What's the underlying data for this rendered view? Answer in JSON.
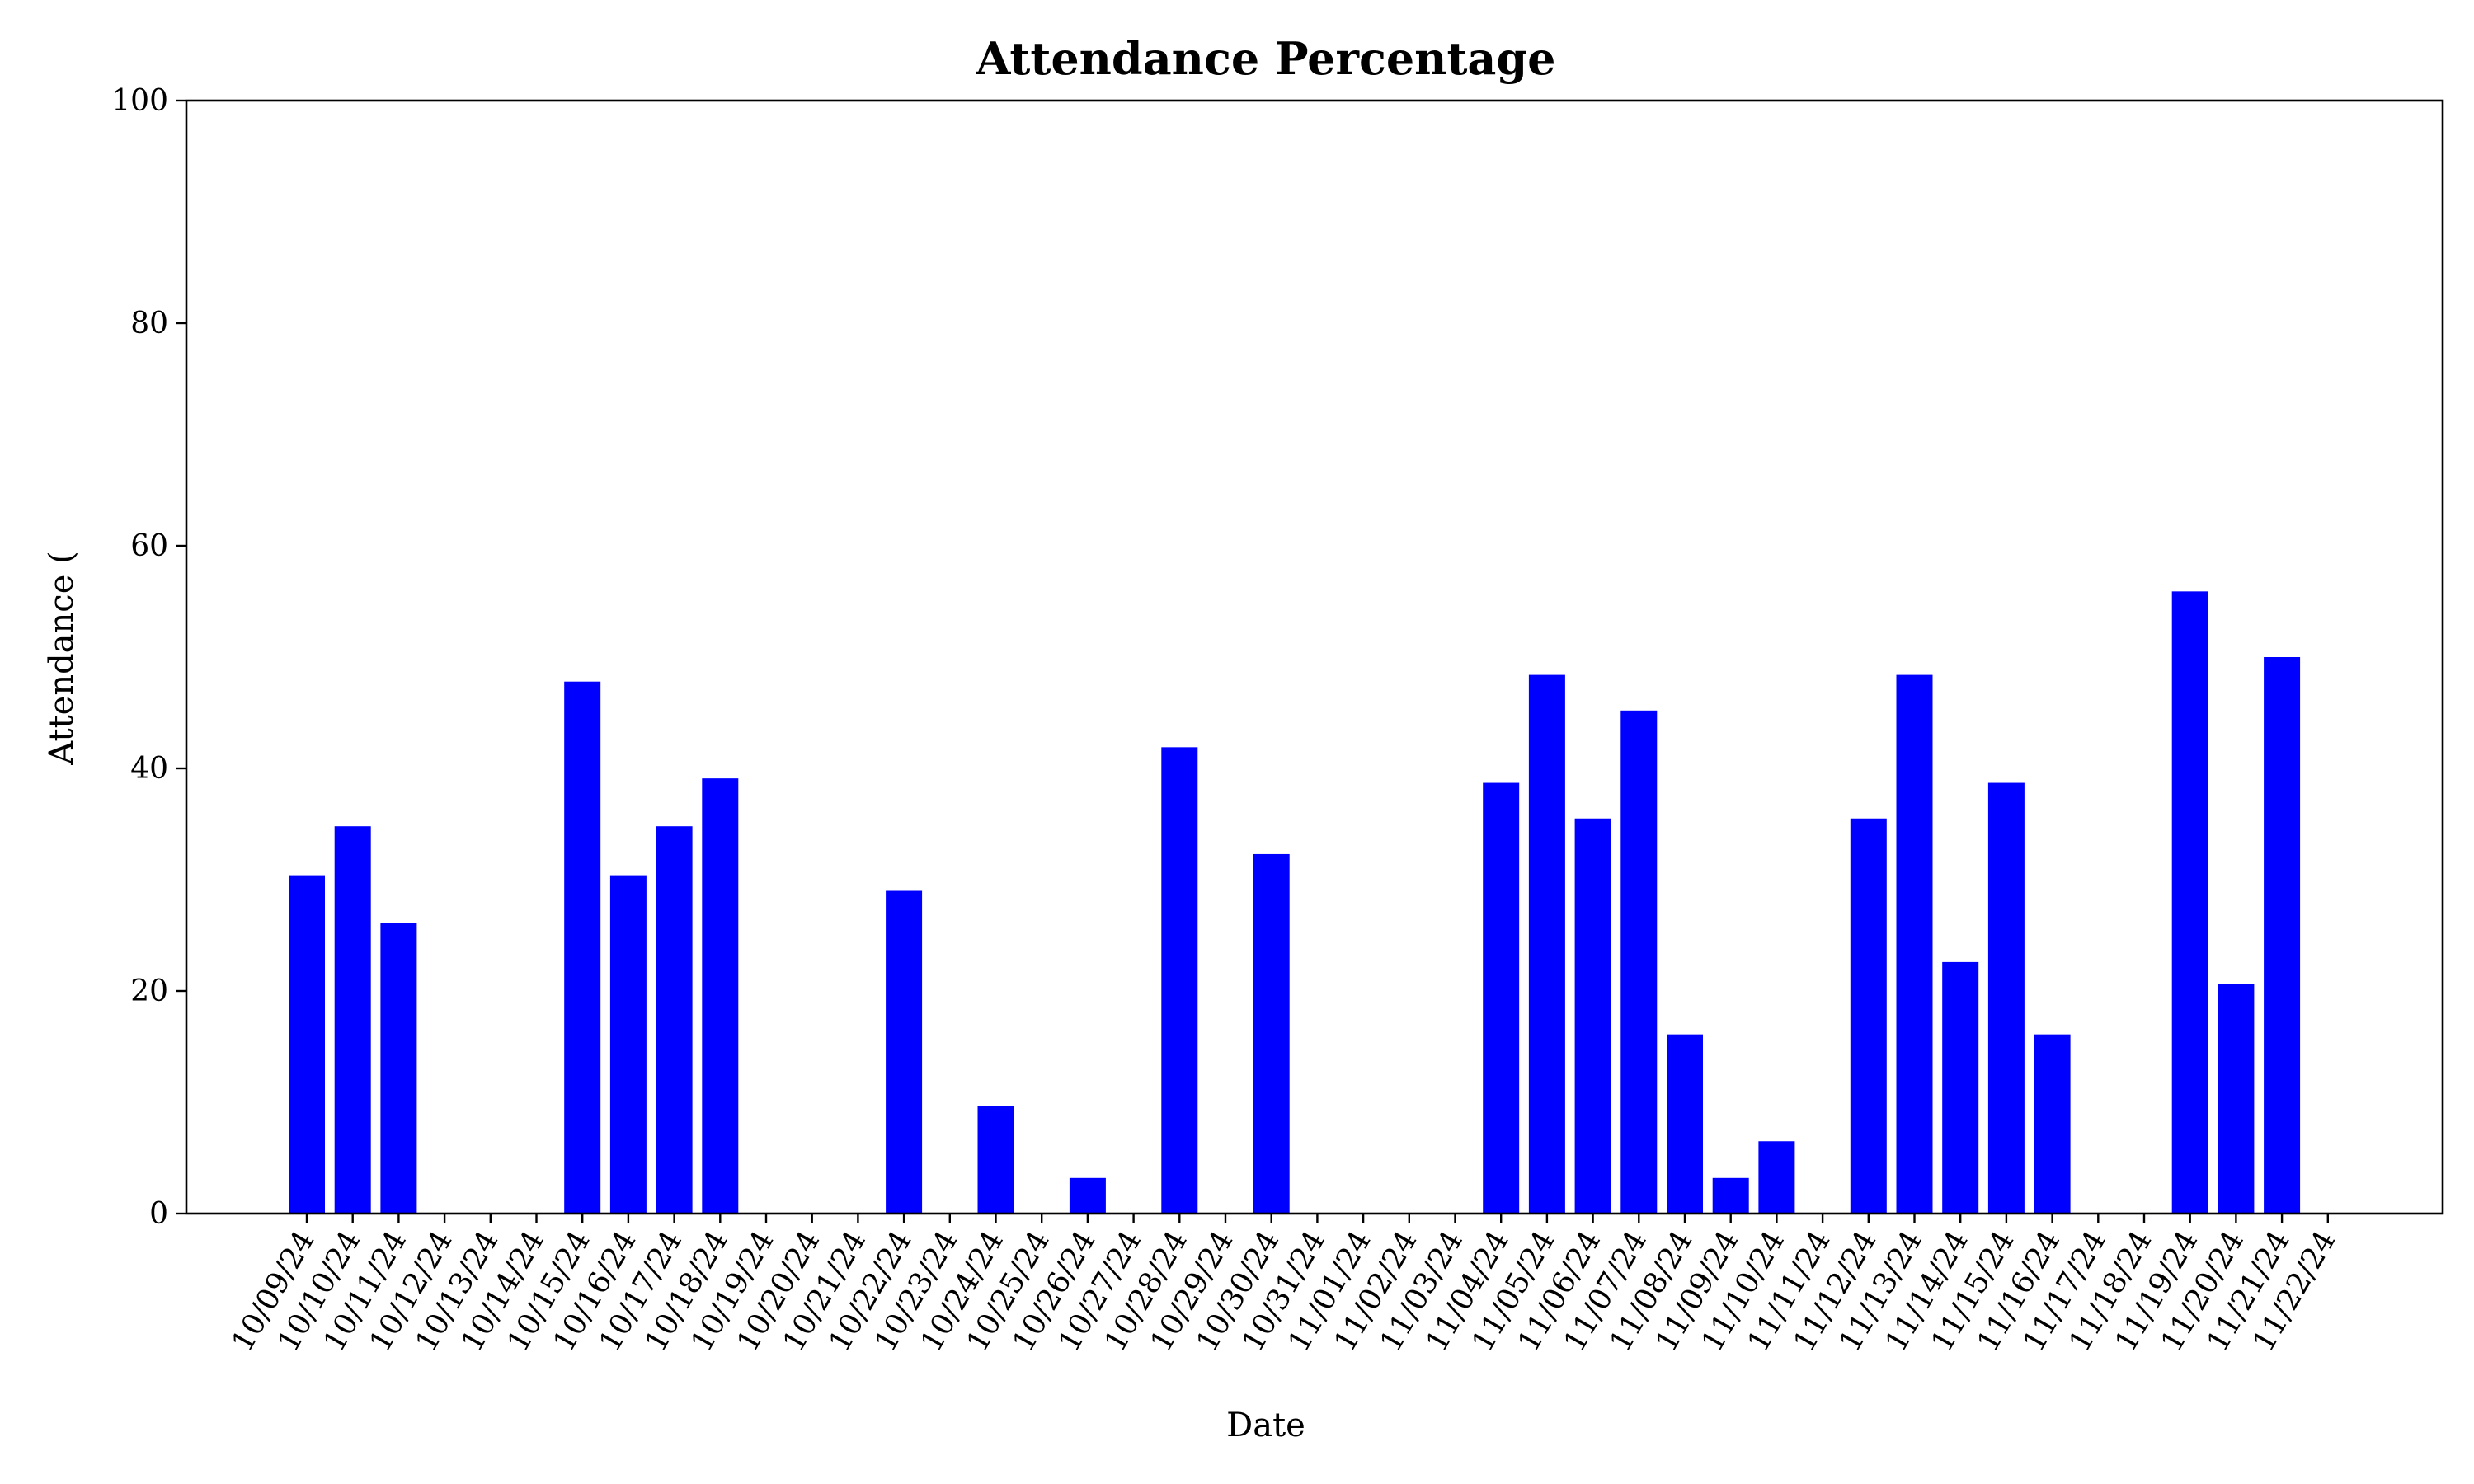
{
  "chart_data": {
    "type": "bar",
    "title": "Attendance Percentage",
    "xlabel": "Date",
    "ylabel": "Attendance (",
    "ylim": [
      0,
      100
    ],
    "yticks": [
      0,
      20,
      40,
      60,
      80,
      100
    ],
    "grid": false,
    "bar_color": "#0000ff",
    "categories": [
      "10/09/24",
      "10/10/24",
      "10/11/24",
      "10/12/24",
      "10/13/24",
      "10/14/24",
      "10/15/24",
      "10/16/24",
      "10/17/24",
      "10/18/24",
      "10/19/24",
      "10/20/24",
      "10/21/24",
      "10/22/24",
      "10/23/24",
      "10/24/24",
      "10/25/24",
      "10/26/24",
      "10/27/24",
      "10/28/24",
      "10/29/24",
      "10/30/24",
      "10/31/24",
      "11/01/24",
      "11/02/24",
      "11/03/24",
      "11/04/24",
      "11/05/24",
      "11/06/24",
      "11/07/24",
      "11/08/24",
      "11/09/24",
      "11/10/24",
      "11/11/24",
      "11/12/24",
      "11/13/24",
      "11/14/24",
      "11/15/24",
      "11/16/24",
      "11/17/24",
      "11/18/24",
      "11/19/24",
      "11/20/24",
      "11/21/24",
      "11/22/24"
    ],
    "values": [
      30.4,
      34.8,
      26.1,
      0,
      0,
      0,
      47.8,
      30.4,
      34.8,
      39.1,
      0,
      0,
      0,
      29.0,
      0,
      9.7,
      0,
      3.2,
      0,
      41.9,
      0,
      32.3,
      0,
      0,
      0,
      0,
      38.7,
      48.4,
      35.5,
      45.2,
      16.1,
      3.2,
      6.5,
      0,
      35.5,
      48.4,
      22.6,
      38.7,
      16.1,
      0,
      0,
      55.9,
      20.6,
      50.0,
      0
    ]
  }
}
